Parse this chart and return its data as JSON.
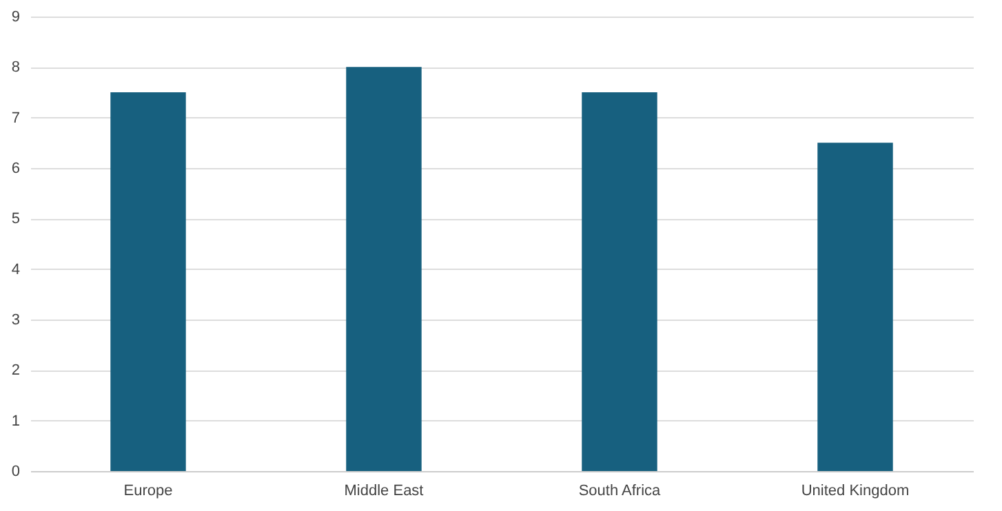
{
  "chart_data": {
    "type": "bar",
    "categories": [
      "Europe",
      "Middle East",
      "South Africa",
      "United Kingdom"
    ],
    "values": [
      7.5,
      8.0,
      7.5,
      6.5
    ],
    "color": "#17607f",
    "ylim": [
      0,
      9
    ],
    "yticks": [
      0,
      1,
      2,
      3,
      4,
      5,
      6,
      7,
      8,
      9
    ],
    "grid": "y"
  }
}
